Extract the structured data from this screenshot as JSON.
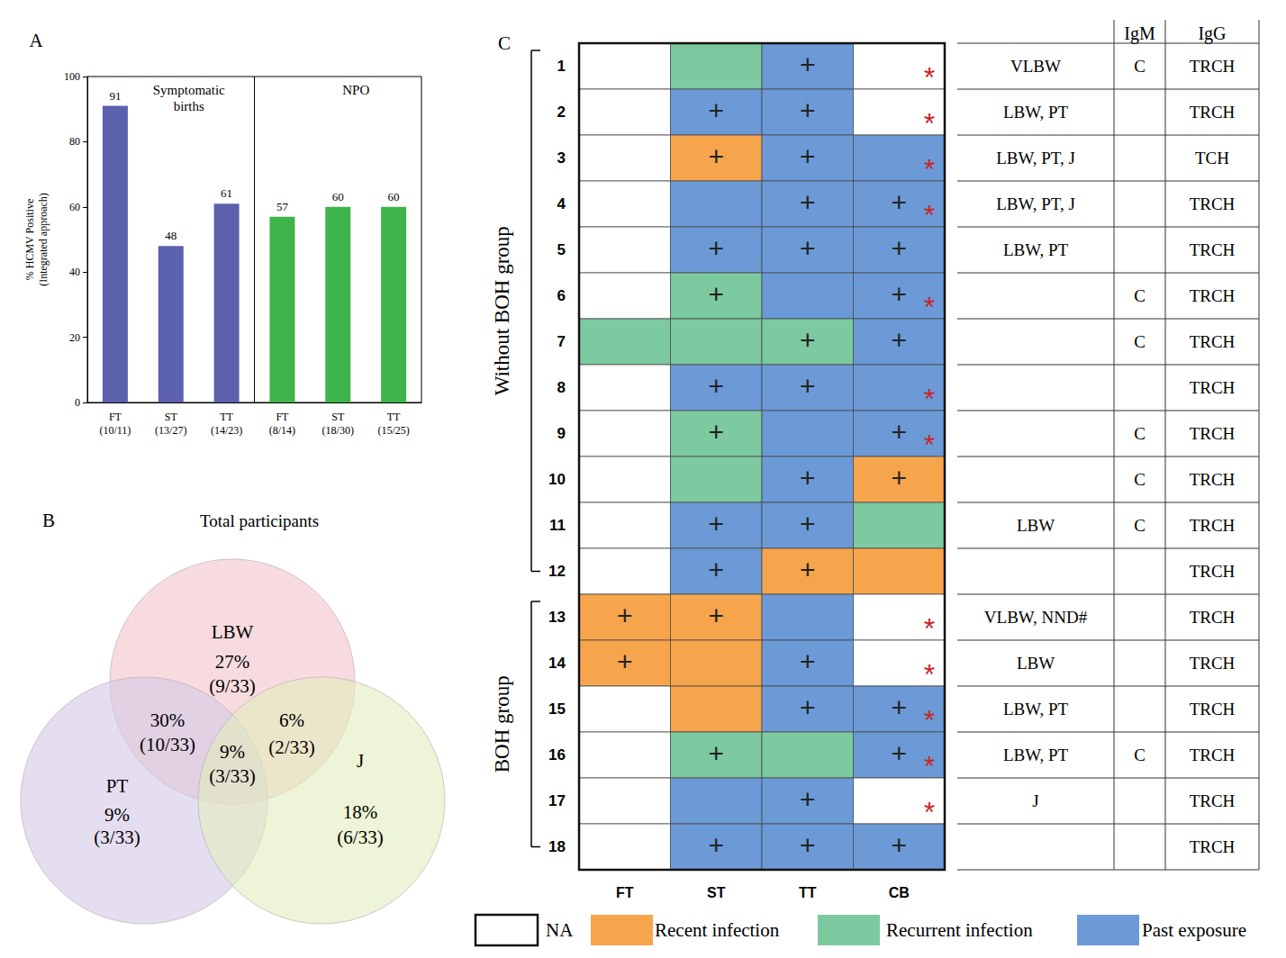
{
  "panel_labels": [
    "A",
    "B",
    "C"
  ],
  "chart_data": {
    "type": "bar",
    "categories": [
      "FT\n(10/11)",
      "ST\n(13/27)",
      "TT\n(14/23)",
      "FT\n(8/14)",
      "ST\n(18/30)",
      "TT\n(15/25)"
    ],
    "values": [
      91,
      48,
      61,
      57,
      60,
      60
    ],
    "colors": [
      "#5c61ad",
      "#5c61ad",
      "#5c61ad",
      "#3db54a",
      "#3db54a",
      "#3db54a"
    ],
    "groups": [
      "Symptomatic\nbirths",
      "Symptomatic\nbirths",
      "Symptomatic\nbirths",
      "NPO",
      "NPO",
      "NPO"
    ],
    "ylabel": "% HCMV Positive\n(Integrated approach)",
    "ylim": [
      0,
      100
    ],
    "yticks": [
      0,
      20,
      40,
      60,
      80,
      100
    ],
    "grid": false,
    "data_labels": true
  },
  "venn": {
    "title": "Total participants",
    "sets": [
      {
        "label": "LBW",
        "color": "#f2c3c8"
      },
      {
        "label": "PT",
        "color": "#d3c8e6"
      },
      {
        "label": "J",
        "color": "#e3edbc"
      }
    ],
    "regions": [
      {
        "sets": [
          "LBW"
        ],
        "text": [
          "27%",
          "(9/33)"
        ]
      },
      {
        "sets": [
          "PT"
        ],
        "text": [
          "9%",
          "(3/33)"
        ]
      },
      {
        "sets": [
          "J"
        ],
        "text": [
          "18%",
          "(6/33)"
        ]
      },
      {
        "sets": [
          "LBW",
          "PT"
        ],
        "text": [
          "30%",
          "(10/33)"
        ]
      },
      {
        "sets": [
          "LBW",
          "J"
        ],
        "text": [
          "6%",
          "(2/33)"
        ]
      },
      {
        "sets": [
          "LBW",
          "PT",
          "J"
        ],
        "text": [
          "9%",
          "(3/33)"
        ]
      }
    ]
  },
  "status_grid": {
    "columns": [
      "FT",
      "ST",
      "TT",
      "CB"
    ],
    "table_headers": [
      null,
      "IgM",
      "IgG"
    ],
    "plus_mark": "+",
    "asterisk_mark": "*",
    "legend": [
      {
        "key": "na",
        "label": "NA",
        "color": "#ffffff"
      },
      {
        "key": "recent",
        "label": "Recent infection",
        "color": "#f7a54c"
      },
      {
        "key": "recurrent",
        "label": "Recurrent infection",
        "color": "#7dc9a0"
      },
      {
        "key": "past",
        "label": "Past exposure",
        "color": "#6b9ad6"
      }
    ],
    "groups": [
      {
        "label": "Without BOH group",
        "first": 1,
        "last": 12
      },
      {
        "label": "BOH group",
        "first": 13,
        "last": 18
      }
    ],
    "rows": [
      {
        "id": 1,
        "cells": [
          "na",
          "recurrent",
          "past",
          "na"
        ],
        "plus": [
          false,
          false,
          true,
          false
        ],
        "asterisk": true,
        "table": [
          "VLBW",
          "C",
          "TRCH"
        ]
      },
      {
        "id": 2,
        "cells": [
          "na",
          "past",
          "past",
          "na"
        ],
        "plus": [
          false,
          true,
          true,
          false
        ],
        "asterisk": true,
        "table": [
          "LBW, PT",
          null,
          "TRCH"
        ]
      },
      {
        "id": 3,
        "cells": [
          "na",
          "recent",
          "past",
          "past"
        ],
        "plus": [
          false,
          true,
          true,
          false
        ],
        "asterisk": true,
        "table": [
          "LBW, PT, J",
          null,
          "TCH"
        ]
      },
      {
        "id": 4,
        "cells": [
          "na",
          "past",
          "past",
          "past"
        ],
        "plus": [
          false,
          false,
          true,
          true
        ],
        "asterisk": true,
        "table": [
          "LBW, PT, J",
          null,
          "TRCH"
        ]
      },
      {
        "id": 5,
        "cells": [
          "na",
          "past",
          "past",
          "past"
        ],
        "plus": [
          false,
          true,
          true,
          true
        ],
        "asterisk": false,
        "table": [
          "LBW, PT",
          null,
          "TRCH"
        ]
      },
      {
        "id": 6,
        "cells": [
          "na",
          "recurrent",
          "past",
          "past"
        ],
        "plus": [
          false,
          true,
          false,
          true
        ],
        "asterisk": true,
        "table": [
          null,
          "C",
          "TRCH"
        ]
      },
      {
        "id": 7,
        "cells": [
          "recurrent",
          "recurrent",
          "recurrent",
          "past"
        ],
        "plus": [
          false,
          false,
          true,
          true
        ],
        "asterisk": false,
        "table": [
          null,
          "C",
          "TRCH"
        ]
      },
      {
        "id": 8,
        "cells": [
          "na",
          "past",
          "past",
          "past"
        ],
        "plus": [
          false,
          true,
          true,
          false
        ],
        "asterisk": true,
        "table": [
          null,
          null,
          "TRCH"
        ]
      },
      {
        "id": 9,
        "cells": [
          "na",
          "recurrent",
          "past",
          "past"
        ],
        "plus": [
          false,
          true,
          false,
          true
        ],
        "asterisk": true,
        "table": [
          null,
          "C",
          "TRCH"
        ]
      },
      {
        "id": 10,
        "cells": [
          "na",
          "recurrent",
          "past",
          "recent"
        ],
        "plus": [
          false,
          false,
          true,
          true
        ],
        "asterisk": false,
        "table": [
          null,
          "C",
          "TRCH"
        ]
      },
      {
        "id": 11,
        "cells": [
          "na",
          "past",
          "past",
          "recurrent"
        ],
        "plus": [
          false,
          true,
          true,
          false
        ],
        "asterisk": false,
        "table": [
          "LBW",
          "C",
          "TRCH"
        ]
      },
      {
        "id": 12,
        "cells": [
          "na",
          "past",
          "recent",
          "recent"
        ],
        "plus": [
          false,
          true,
          true,
          false
        ],
        "asterisk": false,
        "table": [
          null,
          null,
          "TRCH"
        ]
      },
      {
        "id": 13,
        "cells": [
          "recent",
          "recent",
          "past",
          "na"
        ],
        "plus": [
          true,
          true,
          false,
          false
        ],
        "asterisk": true,
        "table": [
          "VLBW, NND#",
          null,
          "TRCH"
        ]
      },
      {
        "id": 14,
        "cells": [
          "recent",
          "recent",
          "past",
          "na"
        ],
        "plus": [
          true,
          false,
          true,
          false
        ],
        "asterisk": true,
        "table": [
          "LBW",
          null,
          "TRCH"
        ]
      },
      {
        "id": 15,
        "cells": [
          "na",
          "recent",
          "past",
          "past"
        ],
        "plus": [
          false,
          false,
          true,
          true
        ],
        "asterisk": true,
        "table": [
          "LBW, PT",
          null,
          "TRCH"
        ]
      },
      {
        "id": 16,
        "cells": [
          "na",
          "recurrent",
          "recurrent",
          "past"
        ],
        "plus": [
          false,
          true,
          false,
          true
        ],
        "asterisk": true,
        "table": [
          "LBW, PT",
          "C",
          "TRCH"
        ]
      },
      {
        "id": 17,
        "cells": [
          "na",
          "past",
          "past",
          "na"
        ],
        "plus": [
          false,
          false,
          true,
          false
        ],
        "asterisk": true,
        "table": [
          "J",
          null,
          "TRCH"
        ]
      },
      {
        "id": 18,
        "cells": [
          "na",
          "past",
          "past",
          "past"
        ],
        "plus": [
          false,
          true,
          true,
          true
        ],
        "asterisk": false,
        "table": [
          null,
          null,
          "TRCH"
        ]
      }
    ]
  }
}
